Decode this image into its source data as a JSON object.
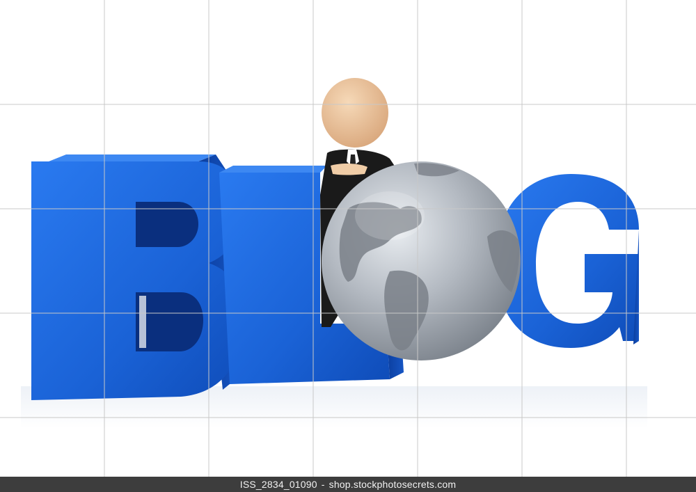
{
  "image": {
    "subject": "BLOG",
    "letters": [
      "B",
      "L",
      "G"
    ],
    "colors": {
      "letter_front": "#1f6be0",
      "letter_side": "#0d3fa3",
      "globe": "#a8afb8",
      "grid": "#c8c8c8",
      "footer_bg": "#3d3d3d"
    }
  },
  "watermark": {
    "image_id": "ISS_2834_01090",
    "separator": "-",
    "site": "shop.stockphotosecrets.com"
  }
}
